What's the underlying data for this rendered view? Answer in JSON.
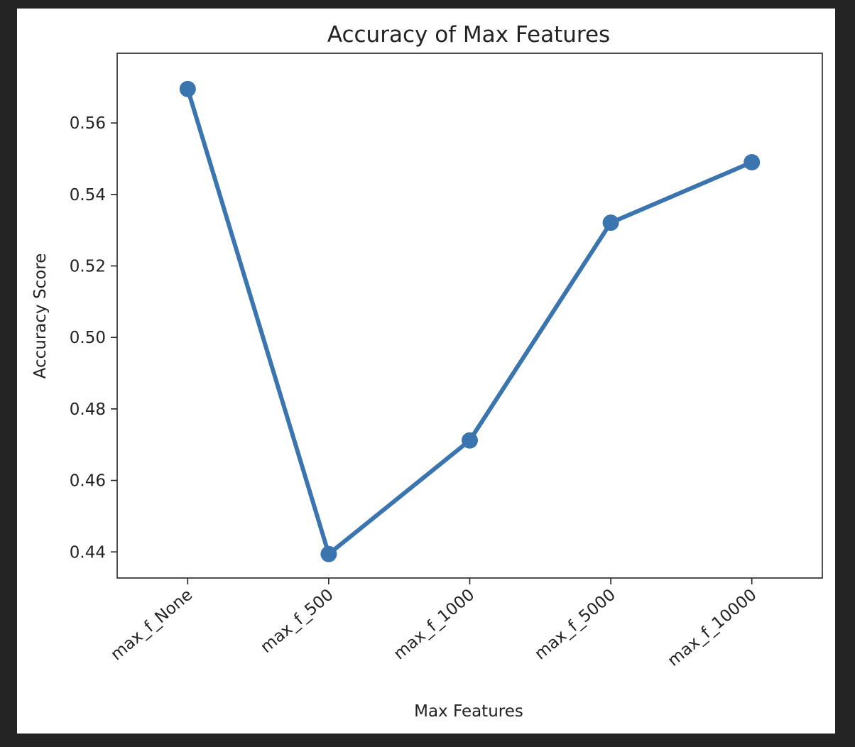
{
  "colors": {
    "background": "#242424",
    "figure": "#ffffff",
    "line": "#3a75b0",
    "text": "#222222"
  },
  "chart_data": {
    "type": "line",
    "title": "Accuracy of Max Features",
    "xlabel": "Max Features",
    "ylabel": "Accuracy Score",
    "categories": [
      "max_f_None",
      "max_f_500",
      "max_f_1000",
      "max_f_5000",
      "max_f_10000"
    ],
    "series": [
      {
        "values": [
          0.5695,
          0.4394,
          0.4712,
          0.5321,
          0.549
        ]
      }
    ],
    "ylim": [
      0.4327,
      0.5795
    ],
    "yticks": [
      0.44,
      0.46,
      0.48,
      0.5,
      0.52,
      0.54,
      0.56
    ],
    "ytick_labels": [
      "0.44",
      "0.46",
      "0.48",
      "0.50",
      "0.52",
      "0.54",
      "0.56"
    ],
    "markers": true,
    "grid": false,
    "legend": "none"
  }
}
